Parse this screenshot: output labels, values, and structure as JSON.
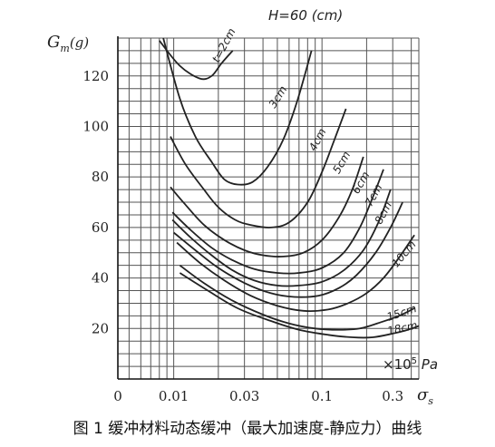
{
  "figure": {
    "caption": "图 1  缓冲材料动态缓冲（最大加速度-静应力）曲线",
    "height_label": "H=60 (cm)",
    "y_axis_title": "G",
    "y_axis_sub": "m",
    "y_axis_unit": "(g)",
    "x_axis_symbol": "σ",
    "x_axis_sub": "s",
    "x_unit": "×10",
    "x_unit_exp": "5",
    "x_unit_tail": " Pa"
  },
  "chart_data": {
    "type": "line",
    "xscale": "log",
    "x_tick_labels": [
      "0",
      "0.01",
      "0.03",
      "0.1",
      "0.3"
    ],
    "x_tick_values": [
      0.0042,
      0.01,
      0.03,
      0.1,
      0.3
    ],
    "xlim": [
      0.0042,
      0.45
    ],
    "ylim": [
      0,
      135
    ],
    "y_ticks": [
      20,
      40,
      60,
      80,
      100,
      120
    ],
    "grid": true,
    "series": [
      {
        "name": "t=2cm",
        "points": [
          [
            0.008,
            134
          ],
          [
            0.011,
            124
          ],
          [
            0.015,
            119
          ],
          [
            0.018,
            120
          ],
          [
            0.021,
            125
          ],
          [
            0.025,
            130
          ]
        ]
      },
      {
        "name": "3cm",
        "points": [
          [
            0.0085,
            135
          ],
          [
            0.011,
            111
          ],
          [
            0.014,
            96
          ],
          [
            0.018,
            86
          ],
          [
            0.022,
            79
          ],
          [
            0.027,
            77
          ],
          [
            0.034,
            78
          ],
          [
            0.043,
            84
          ],
          [
            0.055,
            95
          ],
          [
            0.068,
            110
          ],
          [
            0.085,
            130
          ]
        ]
      },
      {
        "name": "4cm",
        "points": [
          [
            0.0095,
            96
          ],
          [
            0.012,
            85
          ],
          [
            0.016,
            75
          ],
          [
            0.02,
            68
          ],
          [
            0.026,
            63
          ],
          [
            0.033,
            61
          ],
          [
            0.045,
            60
          ],
          [
            0.06,
            62
          ],
          [
            0.08,
            70
          ],
          [
            0.1,
            82
          ],
          [
            0.12,
            94
          ],
          [
            0.145,
            107
          ]
        ]
      },
      {
        "name": "5cm",
        "points": [
          [
            0.0095,
            76
          ],
          [
            0.012,
            69
          ],
          [
            0.016,
            61
          ],
          [
            0.022,
            55
          ],
          [
            0.03,
            51
          ],
          [
            0.04,
            49
          ],
          [
            0.055,
            48.5
          ],
          [
            0.075,
            50
          ],
          [
            0.1,
            55
          ],
          [
            0.13,
            64
          ],
          [
            0.16,
            75
          ],
          [
            0.19,
            88
          ]
        ]
      },
      {
        "name": "6cm",
        "points": [
          [
            0.0098,
            66
          ],
          [
            0.013,
            59
          ],
          [
            0.018,
            52
          ],
          [
            0.025,
            47
          ],
          [
            0.035,
            43.5
          ],
          [
            0.05,
            42
          ],
          [
            0.07,
            42
          ],
          [
            0.1,
            44
          ],
          [
            0.14,
            50
          ],
          [
            0.18,
            60
          ],
          [
            0.22,
            72
          ],
          [
            0.26,
            83
          ]
        ]
      },
      {
        "name": "7cm",
        "points": [
          [
            0.0098,
            63
          ],
          [
            0.013,
            56
          ],
          [
            0.018,
            49
          ],
          [
            0.025,
            43
          ],
          [
            0.035,
            39
          ],
          [
            0.05,
            37
          ],
          [
            0.07,
            37
          ],
          [
            0.1,
            38.5
          ],
          [
            0.14,
            43
          ],
          [
            0.19,
            51
          ],
          [
            0.24,
            62
          ],
          [
            0.29,
            75
          ]
        ]
      },
      {
        "name": "8cm",
        "points": [
          [
            0.01,
            58
          ],
          [
            0.014,
            51
          ],
          [
            0.02,
            44
          ],
          [
            0.03,
            38
          ],
          [
            0.045,
            34
          ],
          [
            0.065,
            32.5
          ],
          [
            0.095,
            33
          ],
          [
            0.13,
            36
          ],
          [
            0.17,
            41
          ],
          [
            0.23,
            50
          ],
          [
            0.29,
            60
          ],
          [
            0.35,
            70
          ]
        ]
      },
      {
        "name": "10cm",
        "points": [
          [
            0.0105,
            54
          ],
          [
            0.015,
            46
          ],
          [
            0.022,
            39
          ],
          [
            0.033,
            33
          ],
          [
            0.05,
            29
          ],
          [
            0.075,
            27
          ],
          [
            0.11,
            27.5
          ],
          [
            0.15,
            30
          ],
          [
            0.2,
            34
          ],
          [
            0.26,
            40
          ],
          [
            0.33,
            48
          ],
          [
            0.42,
            57
          ]
        ]
      },
      {
        "name": "15cm",
        "points": [
          [
            0.011,
            45
          ],
          [
            0.016,
            38
          ],
          [
            0.025,
            31
          ],
          [
            0.04,
            25.5
          ],
          [
            0.06,
            22
          ],
          [
            0.09,
            20
          ],
          [
            0.13,
            19.5
          ],
          [
            0.18,
            20
          ],
          [
            0.25,
            22.5
          ],
          [
            0.33,
            25
          ],
          [
            0.42,
            28
          ]
        ]
      },
      {
        "name": "18cm",
        "points": [
          [
            0.011,
            42
          ],
          [
            0.017,
            35
          ],
          [
            0.027,
            28
          ],
          [
            0.045,
            23
          ],
          [
            0.07,
            19.5
          ],
          [
            0.11,
            17.5
          ],
          [
            0.16,
            16.5
          ],
          [
            0.22,
            16.5
          ],
          [
            0.3,
            18
          ],
          [
            0.38,
            19.5
          ],
          [
            0.45,
            21
          ]
        ]
      }
    ],
    "curve_labels": [
      {
        "text": "t=2cm",
        "x": 0.02,
        "y": 125,
        "angle": -62
      },
      {
        "text": "3cm",
        "x": 0.048,
        "y": 107,
        "angle": -58
      },
      {
        "text": "4cm",
        "x": 0.09,
        "y": 90,
        "angle": -62
      },
      {
        "text": "5cm",
        "x": 0.13,
        "y": 81,
        "angle": -60
      },
      {
        "text": "6cm",
        "x": 0.175,
        "y": 73,
        "angle": -60
      },
      {
        "text": "7cm",
        "x": 0.215,
        "y": 68,
        "angle": -62
      },
      {
        "text": "8cm",
        "x": 0.25,
        "y": 61,
        "angle": -62
      },
      {
        "text": "10cm",
        "x": 0.32,
        "y": 44,
        "angle": -50
      },
      {
        "text": "15cm",
        "x": 0.28,
        "y": 23,
        "angle": -18
      },
      {
        "text": "18cm",
        "x": 0.28,
        "y": 17.5,
        "angle": -12
      }
    ]
  }
}
